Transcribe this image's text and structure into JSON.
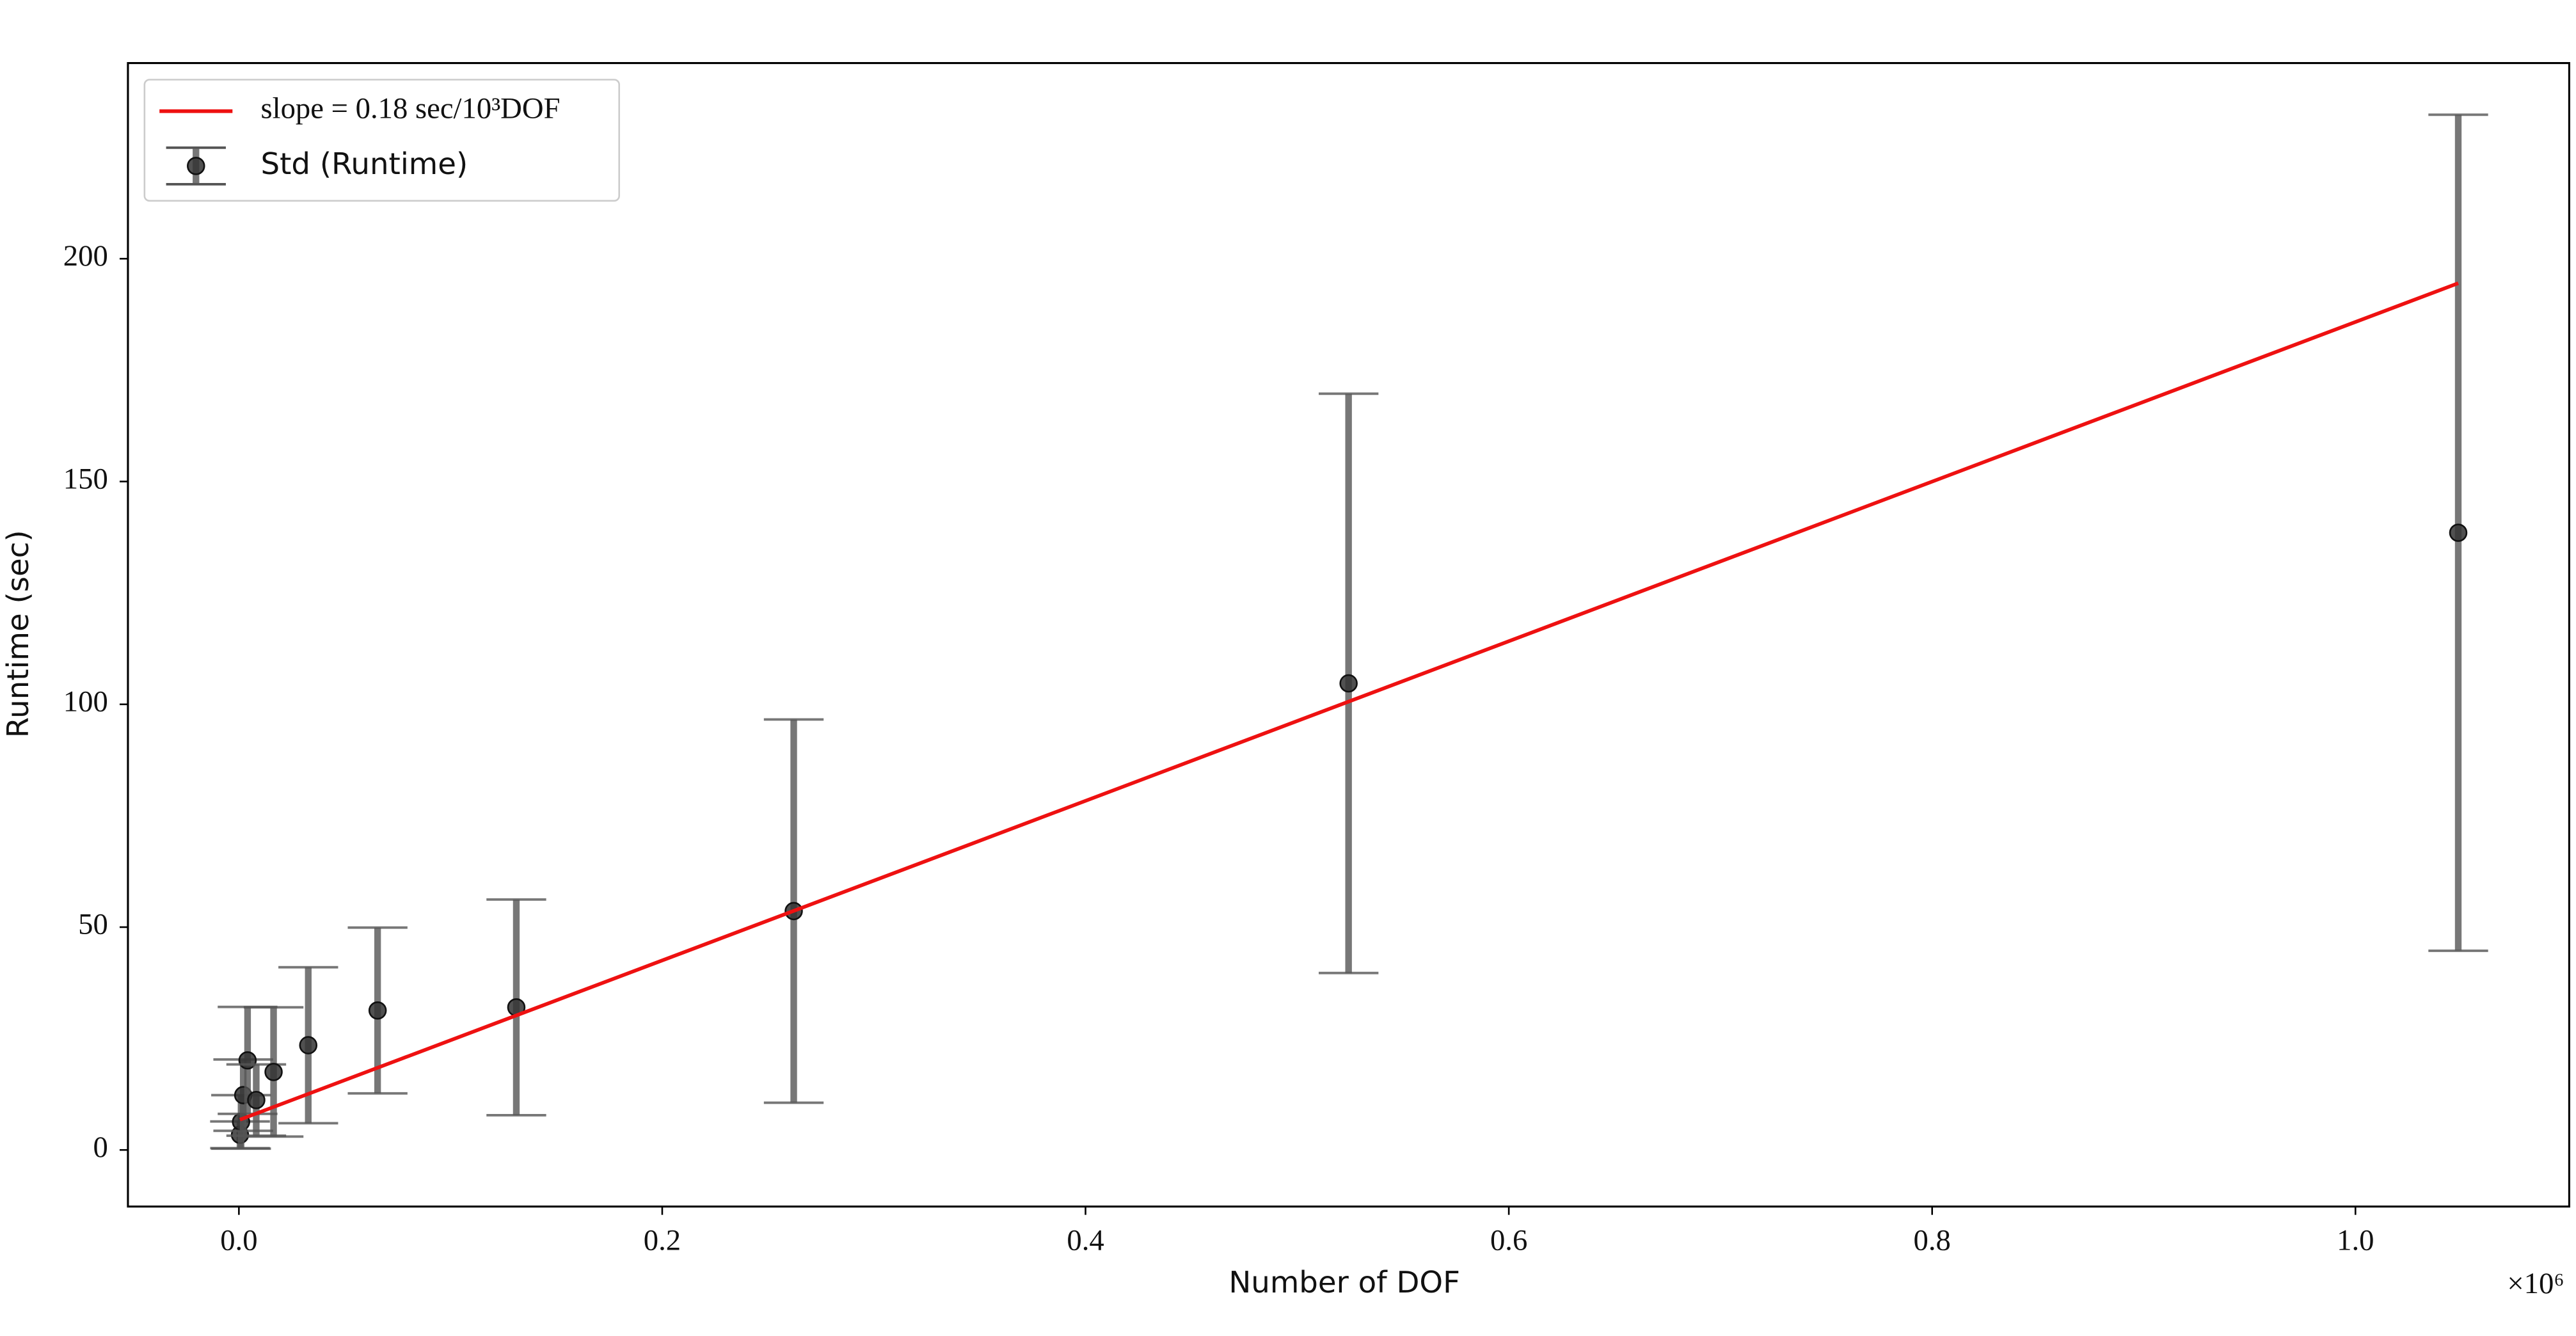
{
  "chart_data": {
    "type": "errorbar",
    "x_label": "Number of DOF",
    "y_label": "Runtime (sec)",
    "x_offset_label": "×10⁶",
    "xlim": [
      -52429,
      1101005
    ],
    "ylim": [
      -12.7,
      243.9
    ],
    "xticks": [
      {
        "value": 0,
        "label": "0.0"
      },
      {
        "value": 200000,
        "label": "0.2"
      },
      {
        "value": 400000,
        "label": "0.4"
      },
      {
        "value": 600000,
        "label": "0.6"
      },
      {
        "value": 800000,
        "label": "0.8"
      },
      {
        "value": 1000000,
        "label": "1.0"
      }
    ],
    "yticks": [
      0,
      50,
      100,
      150,
      200
    ],
    "legend": "upper left",
    "series": [
      {
        "name": "slope = 0.18 sec/10³DOF",
        "type": "line",
        "color": "#ee1111",
        "x": [
          512,
          1048576
        ],
        "values": [
          6.8,
          194.5
        ]
      },
      {
        "name": "Std (Runtime)",
        "type": "errorbar",
        "color": "#555555",
        "x": [
          512,
          1024,
          2048,
          4096,
          8192,
          16384,
          32768,
          65536,
          131072,
          262144,
          524288,
          1048576
        ],
        "values": [
          3.4,
          6.3,
          12.3,
          20.1,
          11.2,
          17.5,
          23.5,
          31.3,
          32.0,
          53.6,
          104.7,
          138.5
        ],
        "errors": [
          3,
          6,
          8,
          12,
          8,
          14.5,
          17.5,
          18.6,
          24.2,
          43,
          65,
          93.8
        ]
      }
    ]
  }
}
